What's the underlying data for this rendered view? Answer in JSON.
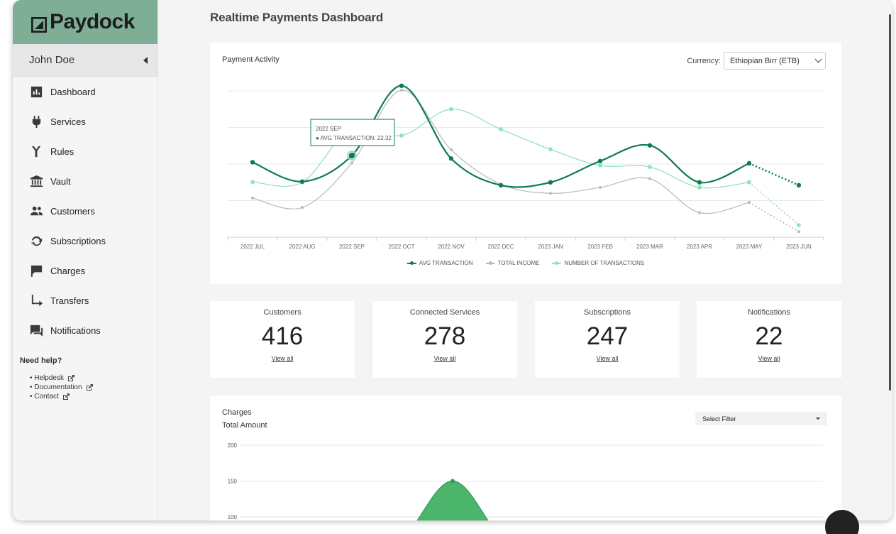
{
  "brand": {
    "name": "Paydock"
  },
  "user": {
    "name": "John Doe"
  },
  "nav": [
    {
      "label": "Dashboard",
      "icon": "bar-chart-icon"
    },
    {
      "label": "Services",
      "icon": "plug-icon"
    },
    {
      "label": "Rules",
      "icon": "fork-icon"
    },
    {
      "label": "Vault",
      "icon": "bank-icon"
    },
    {
      "label": "Customers",
      "icon": "people-icon"
    },
    {
      "label": "Subscriptions",
      "icon": "refresh-icon"
    },
    {
      "label": "Charges",
      "icon": "flag-icon"
    },
    {
      "label": "Transfers",
      "icon": "arrow-turn-icon"
    },
    {
      "label": "Notifications",
      "icon": "chat-icon"
    }
  ],
  "help": {
    "title": "Need help?",
    "links": [
      "• Helpdesk",
      "• Documentation",
      "• Contact"
    ]
  },
  "page": {
    "title": "Realtime Payments Dashboard"
  },
  "activity": {
    "title": "Payment Activity",
    "currency_label": "Currency:",
    "currency_value": "Ethiopian Birr (ETB)",
    "tooltip_title": "2022 SEP",
    "tooltip_value": "● AVG TRANSACTION: 22.32"
  },
  "stats": [
    {
      "label": "Customers",
      "value": "416",
      "link": "View all"
    },
    {
      "label": "Connected Services",
      "value": "278",
      "link": "View all"
    },
    {
      "label": "Subscriptions",
      "value": "247",
      "link": "View all"
    },
    {
      "label": "Notifications",
      "value": "22",
      "link": "View all"
    }
  ],
  "charges": {
    "title": "Charges",
    "subtitle": "Total Amount",
    "filter_placeholder": "Select Filter"
  },
  "colors": {
    "brand": "#7fae97",
    "avg": "#0e7c4e",
    "income": "#b9b9b9",
    "count": "#8fe0bd",
    "charges_fill": "#4cb56c"
  },
  "chart_data": [
    {
      "type": "line",
      "categories": [
        "2022 JUL",
        "2022 AUG",
        "2022 SEP",
        "2022 OCT",
        "2022 NOV",
        "2022 DEC",
        "2023 JAN",
        "2023 FEB",
        "2023 MAR",
        "2023 APR",
        "2023 MAY",
        "2023 JUN"
      ],
      "ylim": [
        0,
        40
      ],
      "grid": true,
      "legend": "bottom",
      "series": [
        {
          "name": "AVG TRANSACTION",
          "color": "#0e7c4e",
          "values": [
            20.5,
            15.2,
            22.32,
            41.4,
            21.5,
            14.2,
            15.0,
            20.8,
            25.1,
            15.0,
            20.2,
            14.2
          ],
          "projected_from": 10
        },
        {
          "name": "TOTAL INCOME",
          "color": "#b9b9b9",
          "values": [
            10.7,
            8.1,
            20.3,
            40.2,
            23.9,
            14.5,
            12.0,
            13.6,
            16.0,
            6.7,
            9.5,
            1.5
          ],
          "projected_from": 10
        },
        {
          "name": "NUMBER OF TRANSACTIONS",
          "color": "#8fe0bd",
          "values": [
            15.1,
            15.0,
            30.1,
            27.8,
            35.0,
            29.5,
            24.0,
            19.6,
            19.2,
            13.6,
            15.0,
            3.3
          ],
          "projected_from": 10
        }
      ]
    },
    {
      "type": "area",
      "title": "Charges",
      "ylabel": "Total Amount",
      "ylim": [
        100,
        200
      ],
      "yticks": [
        200,
        150,
        100
      ],
      "series": [
        {
          "name": "",
          "peak": 150
        }
      ]
    }
  ]
}
